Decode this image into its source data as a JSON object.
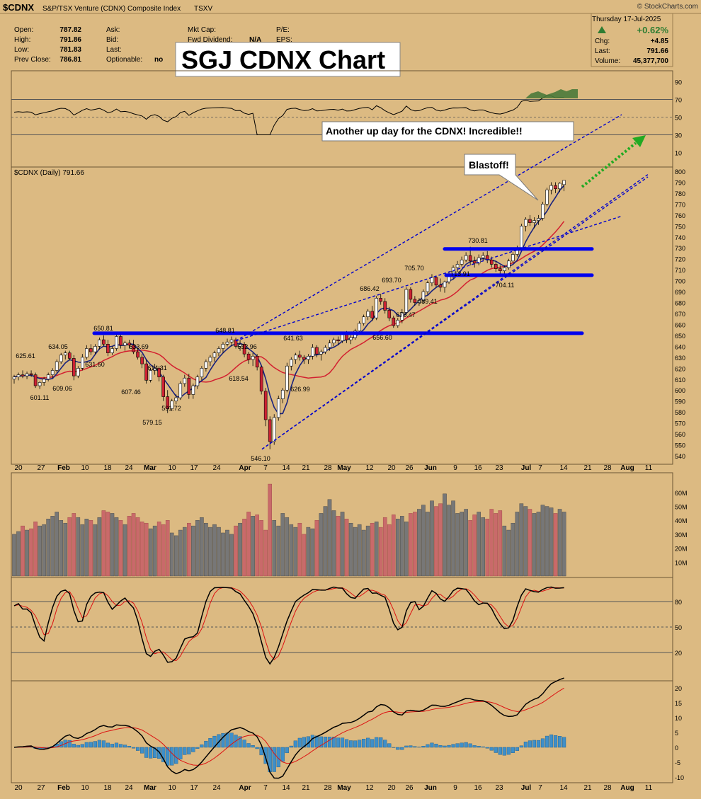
{
  "header": {
    "symbol": "$CDNX",
    "name": "S&P/TSX Venture (CDNX) Composite Index",
    "exchange": "TSXV",
    "date": "Thursday 17-Jul-2025",
    "watermark": "© StockCharts.com",
    "quote": [
      {
        "label": "Open:",
        "value": "787.82"
      },
      {
        "label": "High:",
        "value": "791.86"
      },
      {
        "label": "Low:",
        "value": "781.83"
      },
      {
        "label": "Prev Close:",
        "value": "786.81"
      }
    ],
    "quote2": [
      {
        "label": "Ask:",
        "value": ""
      },
      {
        "label": "Bid:",
        "value": ""
      },
      {
        "label": "Last:",
        "value": ""
      },
      {
        "label": "Optionable:",
        "value": "no"
      }
    ],
    "quote3": [
      {
        "label": "Mkt Cap:",
        "value": ""
      },
      {
        "label": "Fwd Dividend:",
        "value": "N/A"
      }
    ],
    "quote4": [
      {
        "label": "P/E:",
        "value": ""
      },
      {
        "label": "EPS:",
        "value": ""
      }
    ],
    "pct_change": "+0.62%",
    "summary": [
      {
        "label": "Chg:",
        "value": "+4.85"
      },
      {
        "label": "Last:",
        "value": "791.66"
      },
      {
        "label": "Volume:",
        "value": "45,377,700"
      }
    ],
    "big_title": "SGJ CDNX Chart",
    "price_legend": "$CDNX (Daily) 791.66"
  },
  "annotations": {
    "callout1": "Another up day for the CDNX!  Incredible!!",
    "callout2": "Blastoff!"
  },
  "colors": {
    "up": "#ffffff",
    "down": "#cc2233",
    "ma_fast": "#1a237e",
    "ma_slow": "#d32030",
    "support": "#0000ee",
    "channel": "#0000cc",
    "arrow": "#22aa22",
    "panel": "#dcba82"
  },
  "chart_data": [
    {
      "type": "candlestick",
      "title": "$CDNX (Daily) 791.66",
      "ylim": [
        535,
        805
      ],
      "yticks": [
        540,
        550,
        560,
        570,
        580,
        590,
        600,
        610,
        620,
        630,
        640,
        650,
        660,
        670,
        680,
        690,
        700,
        710,
        720,
        730,
        740,
        750,
        760,
        770,
        780,
        790,
        800
      ],
      "x_axis_ticks": [
        "20",
        "27",
        "Feb",
        "10",
        "18",
        "24",
        "Mar",
        "10",
        "17",
        "24",
        "Apr",
        "7",
        "14",
        "21",
        "28",
        "May",
        "12",
        "20",
        "26",
        "Jun",
        "9",
        "16",
        "23",
        "Jul",
        "7",
        "14",
        "21",
        "28",
        "Aug",
        "11"
      ],
      "candles": [
        [
          610,
          614,
          606,
          612
        ],
        [
          612,
          616,
          609,
          614
        ],
        [
          614,
          618,
          611,
          613
        ],
        [
          613,
          617,
          610,
          615
        ],
        [
          615,
          618,
          612,
          614
        ],
        [
          614,
          616,
          602,
          604
        ],
        [
          604,
          608,
          601,
          607
        ],
        [
          607,
          612,
          604,
          610
        ],
        [
          610,
          616,
          608,
          614
        ],
        [
          614,
          620,
          611,
          618
        ],
        [
          618,
          628,
          616,
          626
        ],
        [
          626,
          634,
          624,
          632
        ],
        [
          632,
          636,
          628,
          634
        ],
        [
          634,
          636,
          627,
          629
        ],
        [
          629,
          632,
          609,
          613
        ],
        [
          613,
          622,
          611,
          620
        ],
        [
          620,
          633,
          618,
          630
        ],
        [
          630,
          641,
          628,
          638
        ],
        [
          638,
          642,
          632,
          635
        ],
        [
          635,
          642,
          633,
          640
        ],
        [
          640,
          648,
          637,
          646
        ],
        [
          646,
          650,
          640,
          642
        ],
        [
          642,
          646,
          631,
          634
        ],
        [
          634,
          640,
          632,
          638
        ],
        [
          638,
          651,
          636,
          649
        ],
        [
          649,
          651,
          638,
          641
        ],
        [
          641,
          645,
          636,
          643
        ],
        [
          643,
          646,
          638,
          641
        ],
        [
          641,
          646,
          633,
          635
        ],
        [
          635,
          638,
          628,
          630
        ],
        [
          630,
          633,
          620,
          624
        ],
        [
          624,
          628,
          606,
          609
        ],
        [
          609,
          620,
          607,
          618
        ],
        [
          618,
          624,
          614,
          620
        ],
        [
          620,
          622,
          608,
          612
        ],
        [
          612,
          614,
          590,
          594
        ],
        [
          594,
          600,
          579,
          583
        ],
        [
          583,
          592,
          581,
          590
        ],
        [
          590,
          596,
          587,
          593
        ],
        [
          593,
          608,
          591,
          606
        ],
        [
          606,
          614,
          603,
          611
        ],
        [
          611,
          615,
          592,
          596
        ],
        [
          596,
          606,
          592,
          604
        ],
        [
          604,
          614,
          601,
          612
        ],
        [
          612,
          622,
          609,
          620
        ],
        [
          620,
          628,
          617,
          626
        ],
        [
          626,
          632,
          622,
          630
        ],
        [
          630,
          636,
          626,
          634
        ],
        [
          634,
          640,
          631,
          638
        ],
        [
          638,
          644,
          634,
          642
        ],
        [
          642,
          647,
          640,
          644
        ],
        [
          644,
          649,
          640,
          646
        ],
        [
          646,
          648,
          638,
          640
        ],
        [
          640,
          646,
          636,
          642
        ],
        [
          642,
          644,
          630,
          633
        ],
        [
          633,
          635,
          624,
          628
        ],
        [
          628,
          634,
          622,
          631
        ],
        [
          631,
          633,
          618,
          621
        ],
        [
          621,
          622,
          596,
          599
        ],
        [
          599,
          602,
          567,
          573
        ],
        [
          573,
          576,
          546,
          553
        ],
        [
          553,
          578,
          550,
          575
        ],
        [
          575,
          595,
          572,
          592
        ],
        [
          592,
          602,
          588,
          600
        ],
        [
          600,
          625,
          598,
          622
        ],
        [
          622,
          630,
          618,
          628
        ],
        [
          628,
          634,
          624,
          632
        ],
        [
          632,
          636,
          627,
          630
        ],
        [
          630,
          632,
          624,
          628
        ],
        [
          628,
          633,
          624,
          631
        ],
        [
          631,
          642,
          628,
          639
        ],
        [
          639,
          641,
          630,
          633
        ],
        [
          633,
          637,
          627,
          635
        ],
        [
          635,
          641,
          633,
          639
        ],
        [
          639,
          646,
          636,
          643
        ],
        [
          643,
          648,
          640,
          646
        ],
        [
          646,
          649,
          641,
          645
        ],
        [
          645,
          653,
          643,
          651
        ],
        [
          651,
          654,
          643,
          646
        ],
        [
          646,
          650,
          642,
          648
        ],
        [
          648,
          656,
          646,
          654
        ],
        [
          654,
          663,
          652,
          661
        ],
        [
          661,
          669,
          659,
          667
        ],
        [
          667,
          674,
          664,
          672
        ],
        [
          672,
          677,
          663,
          666
        ],
        [
          666,
          686,
          664,
          684
        ],
        [
          684,
          688,
          678,
          681
        ],
        [
          681,
          684,
          670,
          673
        ],
        [
          673,
          676,
          663,
          666
        ],
        [
          666,
          668,
          657,
          659
        ],
        [
          659,
          666,
          657,
          664
        ],
        [
          664,
          674,
          661,
          671
        ],
        [
          671,
          694,
          669,
          692
        ],
        [
          692,
          694,
          680,
          683
        ],
        [
          683,
          686,
          677,
          680
        ],
        [
          680,
          684,
          677,
          682
        ],
        [
          682,
          692,
          679,
          690
        ],
        [
          690,
          700,
          687,
          698
        ],
        [
          698,
          706,
          695,
          703
        ],
        [
          703,
          704,
          694,
          696
        ],
        [
          696,
          702,
          690,
          694
        ],
        [
          694,
          700,
          689,
          699
        ],
        [
          699,
          708,
          697,
          706
        ],
        [
          706,
          714,
          702,
          712
        ],
        [
          712,
          718,
          708,
          715
        ],
        [
          715,
          722,
          713,
          719
        ],
        [
          719,
          726,
          717,
          723
        ],
        [
          723,
          731,
          714,
          718
        ],
        [
          718,
          722,
          712,
          716
        ],
        [
          716,
          724,
          714,
          721
        ],
        [
          721,
          726,
          718,
          723
        ],
        [
          723,
          727,
          716,
          719
        ],
        [
          719,
          722,
          712,
          715
        ],
        [
          715,
          718,
          708,
          711
        ],
        [
          711,
          714,
          705,
          709
        ],
        [
          709,
          714,
          704,
          712
        ],
        [
          712,
          720,
          710,
          718
        ],
        [
          718,
          726,
          716,
          724
        ],
        [
          724,
          732,
          722,
          730
        ],
        [
          730,
          752,
          728,
          750
        ],
        [
          750,
          758,
          745,
          756
        ],
        [
          756,
          760,
          750,
          753
        ],
        [
          753,
          758,
          748,
          755
        ],
        [
          755,
          760,
          751,
          757
        ],
        [
          757,
          772,
          755,
          770
        ],
        [
          770,
          785,
          768,
          783
        ],
        [
          783,
          790,
          779,
          787
        ],
        [
          787,
          790,
          780,
          784
        ],
        [
          784,
          790,
          781,
          789
        ],
        [
          787.82,
          791.86,
          781.83,
          791.66
        ]
      ],
      "price_labels": [
        "625.61",
        "634.05",
        "650.81",
        "601.11",
        "609.06",
        "631.60",
        "633.69",
        "607.46",
        "614.31",
        "579.15",
        "591.72",
        "648.81",
        "632.96",
        "618.54",
        "641.63",
        "546.10",
        "626.99",
        "686.42",
        "693.70",
        "656.60",
        "676.47",
        "705.70",
        "689.41",
        "730.81",
        "713.91",
        "704.11"
      ],
      "support_levels": [
        652,
        705,
        729
      ],
      "overlays": [
        "MA fast",
        "MA slow",
        "channel lines",
        "green dotted arrow"
      ]
    },
    {
      "type": "line",
      "title": "RSI (upper)",
      "ylim": [
        0,
        100
      ],
      "yticks": [
        10,
        30,
        50,
        70,
        90
      ],
      "reference_lines": [
        30,
        50,
        70
      ]
    },
    {
      "type": "bar",
      "title": "Volume",
      "ylim": [
        0,
        65
      ],
      "yticks": [
        "10M",
        "20M",
        "30M",
        "40M",
        "50M",
        "60M"
      ],
      "values": [
        30,
        32,
        36,
        33,
        34,
        39,
        36,
        37,
        41,
        43,
        46,
        40,
        38,
        42,
        45,
        42,
        37,
        41,
        40,
        37,
        42,
        47,
        46,
        45,
        42,
        40,
        37,
        43,
        45,
        42,
        39,
        38,
        34,
        36,
        39,
        37,
        40,
        31,
        29,
        33,
        35,
        38,
        36,
        40,
        42,
        38,
        35,
        37,
        35,
        31,
        33,
        30,
        36,
        38,
        41,
        46,
        43,
        44,
        40,
        33,
        66,
        40,
        36,
        45,
        42,
        37,
        35,
        38,
        30,
        35,
        34,
        40,
        45,
        50,
        55,
        47,
        43,
        46,
        41,
        38,
        35,
        37,
        33,
        36,
        38,
        39,
        35,
        42,
        37,
        44,
        41,
        43,
        39,
        45,
        46,
        48,
        51,
        46,
        54,
        50,
        52,
        59,
        51,
        54,
        45,
        46,
        48,
        40,
        44,
        46,
        42,
        41,
        48,
        45,
        47,
        36,
        33,
        38,
        46,
        52,
        50,
        48,
        45,
        46,
        51,
        50,
        49,
        45,
        48,
        46
      ]
    },
    {
      "type": "line",
      "title": "Stochastics (middle)",
      "ylim": [
        0,
        100
      ],
      "yticks": [
        20,
        50,
        80
      ],
      "reference_lines": [
        20,
        50,
        80
      ]
    },
    {
      "type": "line",
      "title": "MACD",
      "ylim": [
        -12,
        24
      ],
      "yticks": [
        -10,
        -5,
        0,
        5,
        10,
        15,
        20
      ]
    }
  ]
}
